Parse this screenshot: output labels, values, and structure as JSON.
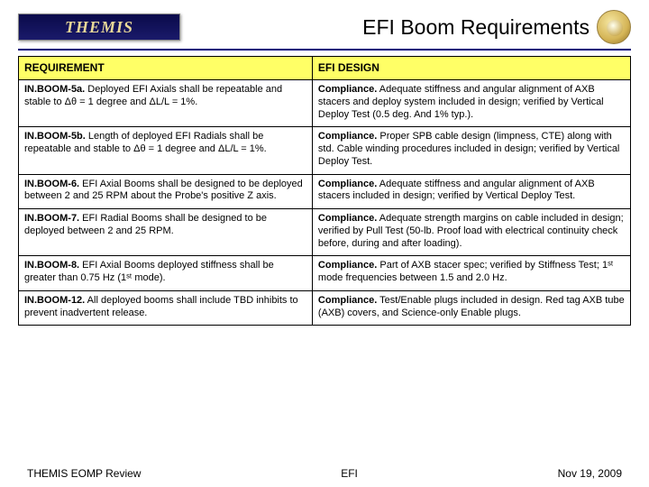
{
  "header": {
    "logo_text": "THEMIS",
    "title": "EFI Boom Requirements"
  },
  "table": {
    "header_bg": "#ffff66",
    "columns": [
      "REQUIREMENT",
      "EFI DESIGN"
    ],
    "rows": [
      {
        "req_id": "IN.BOOM-5a.",
        "req_body": " Deployed EFI Axials shall be repeatable and stable to Δθ = 1 degree and ΔL/L = 1%.",
        "des_lead": "Compliance.",
        "des_body": " Adequate stiffness and angular alignment of AXB stacers and deploy system included in design; verified by Vertical Deploy Test (0.5 deg. And 1% typ.)."
      },
      {
        "req_id": "IN.BOOM-5b.",
        "req_body": " Length of deployed EFI Radials shall be repeatable and stable to Δθ = 1 degree and ΔL/L = 1%.",
        "des_lead": "Compliance.",
        "des_body": "  Proper SPB cable design (limpness, CTE) along with std. Cable winding procedures included in design; verified by Vertical Deploy Test."
      },
      {
        "req_id": "IN.BOOM-6.",
        "req_body": " EFI Axial Booms shall be designed to be deployed between 2 and 25 RPM about the Probe's positive Z axis.",
        "des_lead": "Compliance.",
        "des_body": "  Adequate stiffness and angular alignment of AXB stacers included in design; verified by Vertical Deploy Test."
      },
      {
        "req_id": "IN.BOOM-7.",
        "req_body": " EFI Radial Booms shall be designed to be deployed between 2 and 25 RPM.",
        "des_lead": "Compliance.",
        "des_body": " Adequate strength margins on cable included in design; verified by Pull Test (50-lb. Proof load with electrical continuity check before, during and after loading)."
      },
      {
        "req_id": "IN.BOOM-8.",
        "req_body": " EFI Axial Booms deployed stiffness shall be greater than 0.75 Hz (1ˢᵗ mode).",
        "des_lead": "Compliance.",
        "des_body": " Part of AXB stacer spec; verified by Stiffness Test; 1ˢᵗ mode frequencies between 1.5 and 2.0 Hz."
      },
      {
        "req_id": "IN.BOOM-12.",
        "req_body": " All deployed booms shall include TBD inhibits to prevent inadvertent release.",
        "des_lead": "Compliance.",
        "des_body": " Test/Enable plugs included in design. Red tag AXB tube (AXB) covers, and Science-only Enable plugs."
      }
    ]
  },
  "footer": {
    "left": "THEMIS EOMP Review",
    "center": "EFI",
    "right": "Nov 19, 2009"
  }
}
